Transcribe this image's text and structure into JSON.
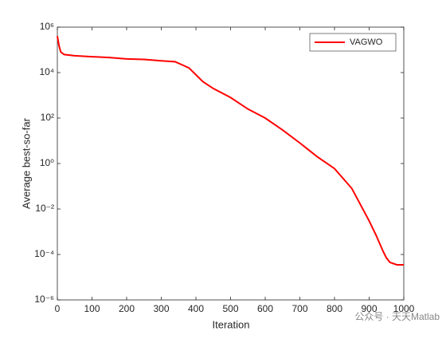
{
  "chart_data": {
    "type": "line",
    "xlabel": "Iteration",
    "ylabel": "Average best-so-far",
    "x": [
      0,
      5,
      10,
      20,
      50,
      100,
      150,
      200,
      250,
      300,
      340,
      360,
      380,
      400,
      420,
      450,
      500,
      550,
      600,
      650,
      700,
      750,
      800,
      850,
      900,
      920,
      940,
      950,
      960,
      980,
      1000
    ],
    "series": [
      {
        "name": "VAGWO",
        "color": "#ff0000",
        "values": [
          400000,
          150000,
          80000,
          62000,
          55000,
          50000,
          46000,
          40000,
          38000,
          33000,
          30000,
          22000,
          16000,
          8000,
          4000,
          2000,
          800,
          250,
          100,
          30,
          8,
          2,
          0.6,
          0.08,
          0.003,
          0.0007,
          0.00014,
          7e-05,
          4.5e-05,
          3.5e-05,
          3.5e-05
        ]
      }
    ],
    "xlim": [
      0,
      1000
    ],
    "xticks": [
      0,
      100,
      200,
      300,
      400,
      500,
      600,
      700,
      800,
      900,
      1000
    ],
    "ylim": [
      1e-06,
      1000000
    ],
    "ylog": true,
    "yticks": [
      {
        "value": 1e-06,
        "label": "10⁻⁶"
      },
      {
        "value": 0.0001,
        "label": "10⁻⁴"
      },
      {
        "value": 0.01,
        "label": "10⁻²"
      },
      {
        "value": 1,
        "label": "10⁰"
      },
      {
        "value": 100,
        "label": "10²"
      },
      {
        "value": 10000,
        "label": "10⁴"
      },
      {
        "value": 1000000,
        "label": "10⁶"
      }
    ],
    "legend": "upper right",
    "watermark": "公众号 · 天天Matlab"
  }
}
